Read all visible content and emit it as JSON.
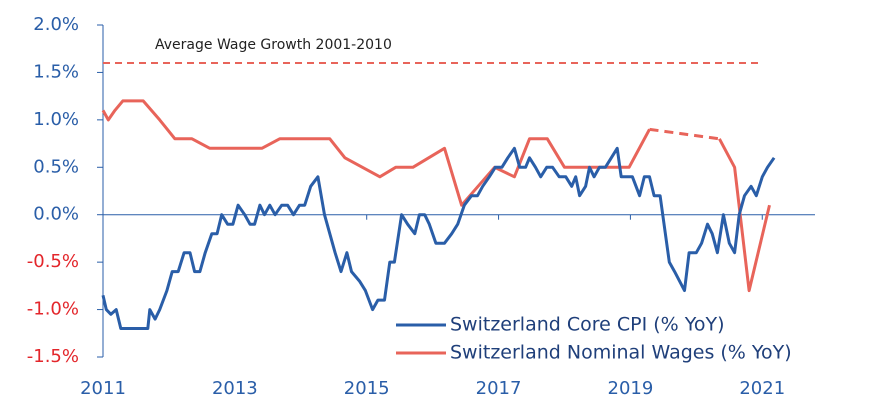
{
  "chart_data": {
    "type": "line",
    "xlim": [
      2011,
      2021.8
    ],
    "xticks": [
      2011,
      2013,
      2015,
      2017,
      2019,
      2021
    ],
    "ylim": [
      -1.5,
      2.0
    ],
    "yticks": [
      {
        "value": -1.5,
        "label": "-1.5%"
      },
      {
        "value": -1.0,
        "label": "-1.0%"
      },
      {
        "value": -0.5,
        "label": "-0.5%"
      },
      {
        "value": 0.0,
        "label": "0.0%"
      },
      {
        "value": 0.5,
        "label": "0.5%"
      },
      {
        "value": 1.0,
        "label": "1.0%"
      },
      {
        "value": 1.5,
        "label": "1.5%"
      },
      {
        "value": 2.0,
        "label": "2.0%"
      }
    ],
    "ytick_color": "#2a5ea8",
    "negative_ytick_color": "#e3262b",
    "xtick_color": "#2a5ea8",
    "gap_style": "dashed",
    "legend": "lower right",
    "reference_line": {
      "label": "Average Wage Growth 2001-2010",
      "value": 1.6,
      "color": "#e8645a"
    },
    "series": [
      {
        "name": "Switzerland Core CPI (% YoY)",
        "color": "#2a5ea8",
        "x": [
          2011.0,
          2011.05,
          2011.12,
          2011.2,
          2011.27,
          2011.68,
          2011.71,
          2011.79,
          2011.86,
          2011.97,
          2012.05,
          2012.14,
          2012.23,
          2012.32,
          2012.39,
          2012.47,
          2012.55,
          2012.65,
          2012.73,
          2012.8,
          2012.89,
          2012.97,
          2013.05,
          2013.15,
          2013.23,
          2013.3,
          2013.38,
          2013.45,
          2013.53,
          2013.61,
          2013.71,
          2013.8,
          2013.89,
          2013.98,
          2014.06,
          2014.15,
          2014.26,
          2014.36,
          2014.52,
          2014.61,
          2014.7,
          2014.77,
          2014.89,
          2014.98,
          2015.09,
          2015.17,
          2015.27,
          2015.35,
          2015.42,
          2015.53,
          2015.62,
          2015.73,
          2015.8,
          2015.88,
          2015.95,
          2016.05,
          2016.18,
          2016.29,
          2016.38,
          2016.48,
          2016.59,
          2016.68,
          2016.76,
          2016.86,
          2016.95,
          2017.05,
          2017.14,
          2017.24,
          2017.32,
          2017.41,
          2017.47,
          2017.56,
          2017.64,
          2017.73,
          2017.82,
          2017.92,
          2018.02,
          2018.11,
          2018.17,
          2018.23,
          2018.32,
          2018.38,
          2018.45,
          2018.53,
          2018.62,
          2018.71,
          2018.8,
          2018.86,
          2019.03,
          2019.14,
          2019.21,
          2019.29,
          2019.36,
          2019.45,
          2019.59,
          2019.67,
          2019.82,
          2019.89,
          2020.0,
          2020.08,
          2020.17,
          2020.24,
          2020.32,
          2020.41,
          2020.5,
          2020.58,
          2020.65,
          2020.73,
          2020.83,
          2020.91,
          2021.0,
          2021.08,
          2021.18
        ],
        "values": [
          -0.85,
          -1.0,
          -1.05,
          -1.0,
          -1.2,
          -1.2,
          -1.0,
          -1.1,
          -1.0,
          -0.8,
          -0.6,
          -0.6,
          -0.4,
          -0.4,
          -0.6,
          -0.6,
          -0.4,
          -0.2,
          -0.2,
          0.0,
          -0.1,
          -0.1,
          0.1,
          0.0,
          -0.1,
          -0.1,
          0.1,
          0.0,
          0.1,
          0.0,
          0.1,
          0.1,
          0.0,
          0.1,
          0.1,
          0.3,
          0.4,
          0.0,
          -0.4,
          -0.6,
          -0.4,
          -0.6,
          -0.7,
          -0.8,
          -1.0,
          -0.9,
          -0.9,
          -0.5,
          -0.5,
          0.0,
          -0.1,
          -0.2,
          0.0,
          0.0,
          -0.1,
          -0.3,
          -0.3,
          -0.2,
          -0.1,
          0.1,
          0.2,
          0.2,
          0.3,
          0.4,
          0.5,
          0.5,
          0.6,
          0.7,
          0.5,
          0.5,
          0.6,
          0.5,
          0.4,
          0.5,
          0.5,
          0.4,
          0.4,
          0.3,
          0.4,
          0.2,
          0.3,
          0.5,
          0.4,
          0.5,
          0.5,
          0.6,
          0.7,
          0.4,
          0.4,
          0.2,
          0.4,
          0.4,
          0.2,
          0.2,
          -0.5,
          -0.6,
          -0.8,
          -0.4,
          -0.4,
          -0.3,
          -0.1,
          -0.2,
          -0.4,
          0.0,
          -0.3,
          -0.4,
          0.0,
          0.2,
          0.3,
          0.2,
          0.4,
          0.5,
          0.6
        ]
      },
      {
        "name": "Switzerland Nominal Wages (% YoY)",
        "color": "#e8645a",
        "x": [
          2011.0,
          2011.08,
          2011.18,
          2011.3,
          2011.61,
          2011.86,
          2012.09,
          2012.35,
          2012.62,
          2013.41,
          2013.68,
          2014.44,
          2014.67,
          2015.2,
          2015.44,
          2015.7,
          2016.18,
          2016.44,
          2016.94,
          2017.24,
          2017.47,
          2017.74,
          2018.0,
          2018.98,
          2019.29,
          2019.7,
          2020.35,
          2020.58,
          2020.8,
          2021.11
        ],
        "values": [
          1.1,
          1.0,
          1.1,
          1.2,
          1.2,
          1.0,
          0.8,
          0.8,
          0.7,
          0.7,
          0.8,
          0.8,
          0.6,
          0.4,
          0.5,
          0.5,
          0.7,
          0.1,
          0.5,
          0.4,
          0.8,
          0.8,
          0.5,
          0.5,
          0.9,
          null,
          0.8,
          0.5,
          -0.8,
          0.1
        ]
      }
    ]
  }
}
